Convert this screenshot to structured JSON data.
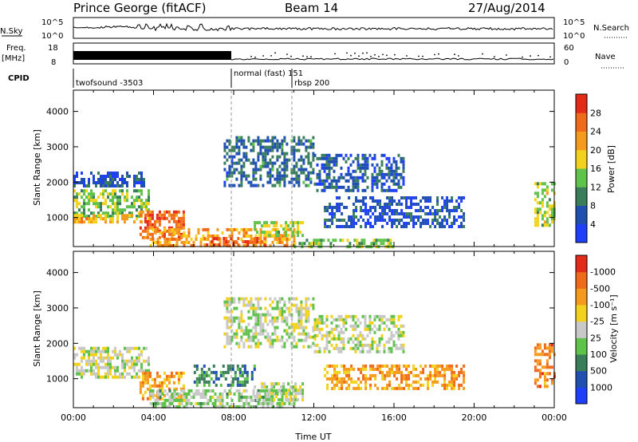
{
  "header": {
    "station": "Prince George (fitACF)",
    "beam": "Beam 14",
    "date": "27/Aug/2014"
  },
  "top_panels": {
    "nsky": {
      "label": "N.Sky",
      "ticks": [
        "10^5",
        "10^0"
      ]
    },
    "nsearch": {
      "label": "N.Search",
      "ticks": [
        "10^5",
        "10^0"
      ]
    },
    "freq": {
      "label_line1": "Freq.",
      "label_line2": "[MHz]",
      "ticks": [
        "18",
        "8"
      ]
    },
    "nave": {
      "label": "Nave",
      "ticks": [
        "60",
        "0"
      ]
    },
    "cpid": {
      "label": "CPID",
      "segments": [
        {
          "text": "twofsound -3503",
          "start": "00:00"
        },
        {
          "text": "normal (fast) 151",
          "start": "08:00"
        },
        {
          "text": "rbsp 200",
          "start": "11:00"
        }
      ]
    }
  },
  "chart_data": [
    {
      "type": "heatmap",
      "panel": "power",
      "x_ticks": [
        "00:00",
        "04:00",
        "08:00",
        "12:00",
        "16:00",
        "20:00",
        "00:00"
      ],
      "x_range_hours": [
        0,
        24
      ],
      "ylabel": "Slant Range [km]",
      "y_ticks": [
        "1000",
        "2000",
        "3000",
        "4000"
      ],
      "ylim_km": [
        180,
        4600
      ],
      "colorbar": {
        "label": "Power [dB]",
        "ticks": [
          "4",
          "8",
          "12",
          "16",
          "20",
          "24",
          "28"
        ],
        "range": [
          0,
          32
        ],
        "colors": [
          "#1f3fff",
          "#1f50b0",
          "#3a7d5a",
          "#5fc24a",
          "#f2d21a",
          "#f59a1a",
          "#f06a1a",
          "#e62a1a"
        ]
      },
      "regions": [
        {
          "t0": 0,
          "t1": 3.8,
          "r0": 1050,
          "r1": 1800,
          "level": 3.0
        },
        {
          "t0": 0,
          "t1": 3.8,
          "r0": 900,
          "r1": 1100,
          "level": 4.5
        },
        {
          "t0": 3.3,
          "t1": 5.5,
          "r0": 400,
          "r1": 1200,
          "level": 6.0
        },
        {
          "t0": 3.8,
          "t1": 11.0,
          "r0": 200,
          "r1": 700,
          "level": 5.0
        },
        {
          "t0": 6.5,
          "t1": 9.5,
          "r0": 250,
          "r1": 450,
          "level": 6.5
        },
        {
          "t0": 9.0,
          "t1": 11.5,
          "r0": 500,
          "r1": 900,
          "level": 3.5
        },
        {
          "t0": 11.0,
          "t1": 16.0,
          "r0": 200,
          "r1": 400,
          "level": 3.0
        },
        {
          "t0": 7.5,
          "t1": 12.0,
          "r0": 1900,
          "r1": 3300,
          "level": 1.5
        },
        {
          "t0": 12.0,
          "t1": 16.5,
          "r0": 1800,
          "r1": 2800,
          "level": 1.0
        },
        {
          "t0": 12.5,
          "t1": 19.5,
          "r0": 700,
          "r1": 1600,
          "level": 0.8
        },
        {
          "t0": 23.0,
          "t1": 24.0,
          "r0": 800,
          "r1": 2000,
          "level": 3.5
        },
        {
          "t0": 0,
          "t1": 3.5,
          "r0": 1900,
          "r1": 2300,
          "level": 0.8
        }
      ]
    },
    {
      "type": "heatmap",
      "panel": "velocity",
      "x_ticks": [
        "00:00",
        "04:00",
        "08:00",
        "12:00",
        "16:00",
        "20:00",
        "00:00"
      ],
      "xlabel": "Time UT",
      "x_range_hours": [
        0,
        24
      ],
      "ylabel": "Slant Range [km]",
      "y_ticks": [
        "1000",
        "2000",
        "3000",
        "4000"
      ],
      "ylim_km": [
        180,
        4600
      ],
      "colorbar": {
        "label": "Velocity [m s⁻¹]",
        "ticks": [
          "1000",
          "500",
          "100",
          "25",
          "-25",
          "-100",
          "-500",
          "-1000"
        ],
        "colors": [
          "#1f3fff",
          "#1f50b0",
          "#3a7d5a",
          "#5fc24a",
          "#c8c8c8",
          "#f2d21a",
          "#f59a1a",
          "#f06a1a",
          "#e62a1a"
        ]
      },
      "regions": [
        {
          "t0": 0,
          "t1": 3.8,
          "r0": 1050,
          "r1": 1900,
          "level": 4.0
        },
        {
          "t0": 3.3,
          "t1": 5.5,
          "r0": 400,
          "r1": 1200,
          "level": 6.0
        },
        {
          "t0": 3.8,
          "t1": 11.0,
          "r0": 200,
          "r1": 700,
          "level": 3.5
        },
        {
          "t0": 9.0,
          "t1": 11.5,
          "r0": 400,
          "r1": 900,
          "level": 4.0
        },
        {
          "t0": 6.0,
          "t1": 9.0,
          "r0": 800,
          "r1": 1400,
          "level": 2.0
        },
        {
          "t0": 7.5,
          "t1": 12.0,
          "r0": 1900,
          "r1": 3300,
          "level": 4.0
        },
        {
          "t0": 12.0,
          "t1": 16.5,
          "r0": 1800,
          "r1": 2800,
          "level": 4.0
        },
        {
          "t0": 12.5,
          "t1": 19.5,
          "r0": 700,
          "r1": 1400,
          "level": 6.0
        },
        {
          "t0": 23.0,
          "t1": 24.0,
          "r0": 800,
          "r1": 2000,
          "level": 6.5
        }
      ]
    }
  ]
}
